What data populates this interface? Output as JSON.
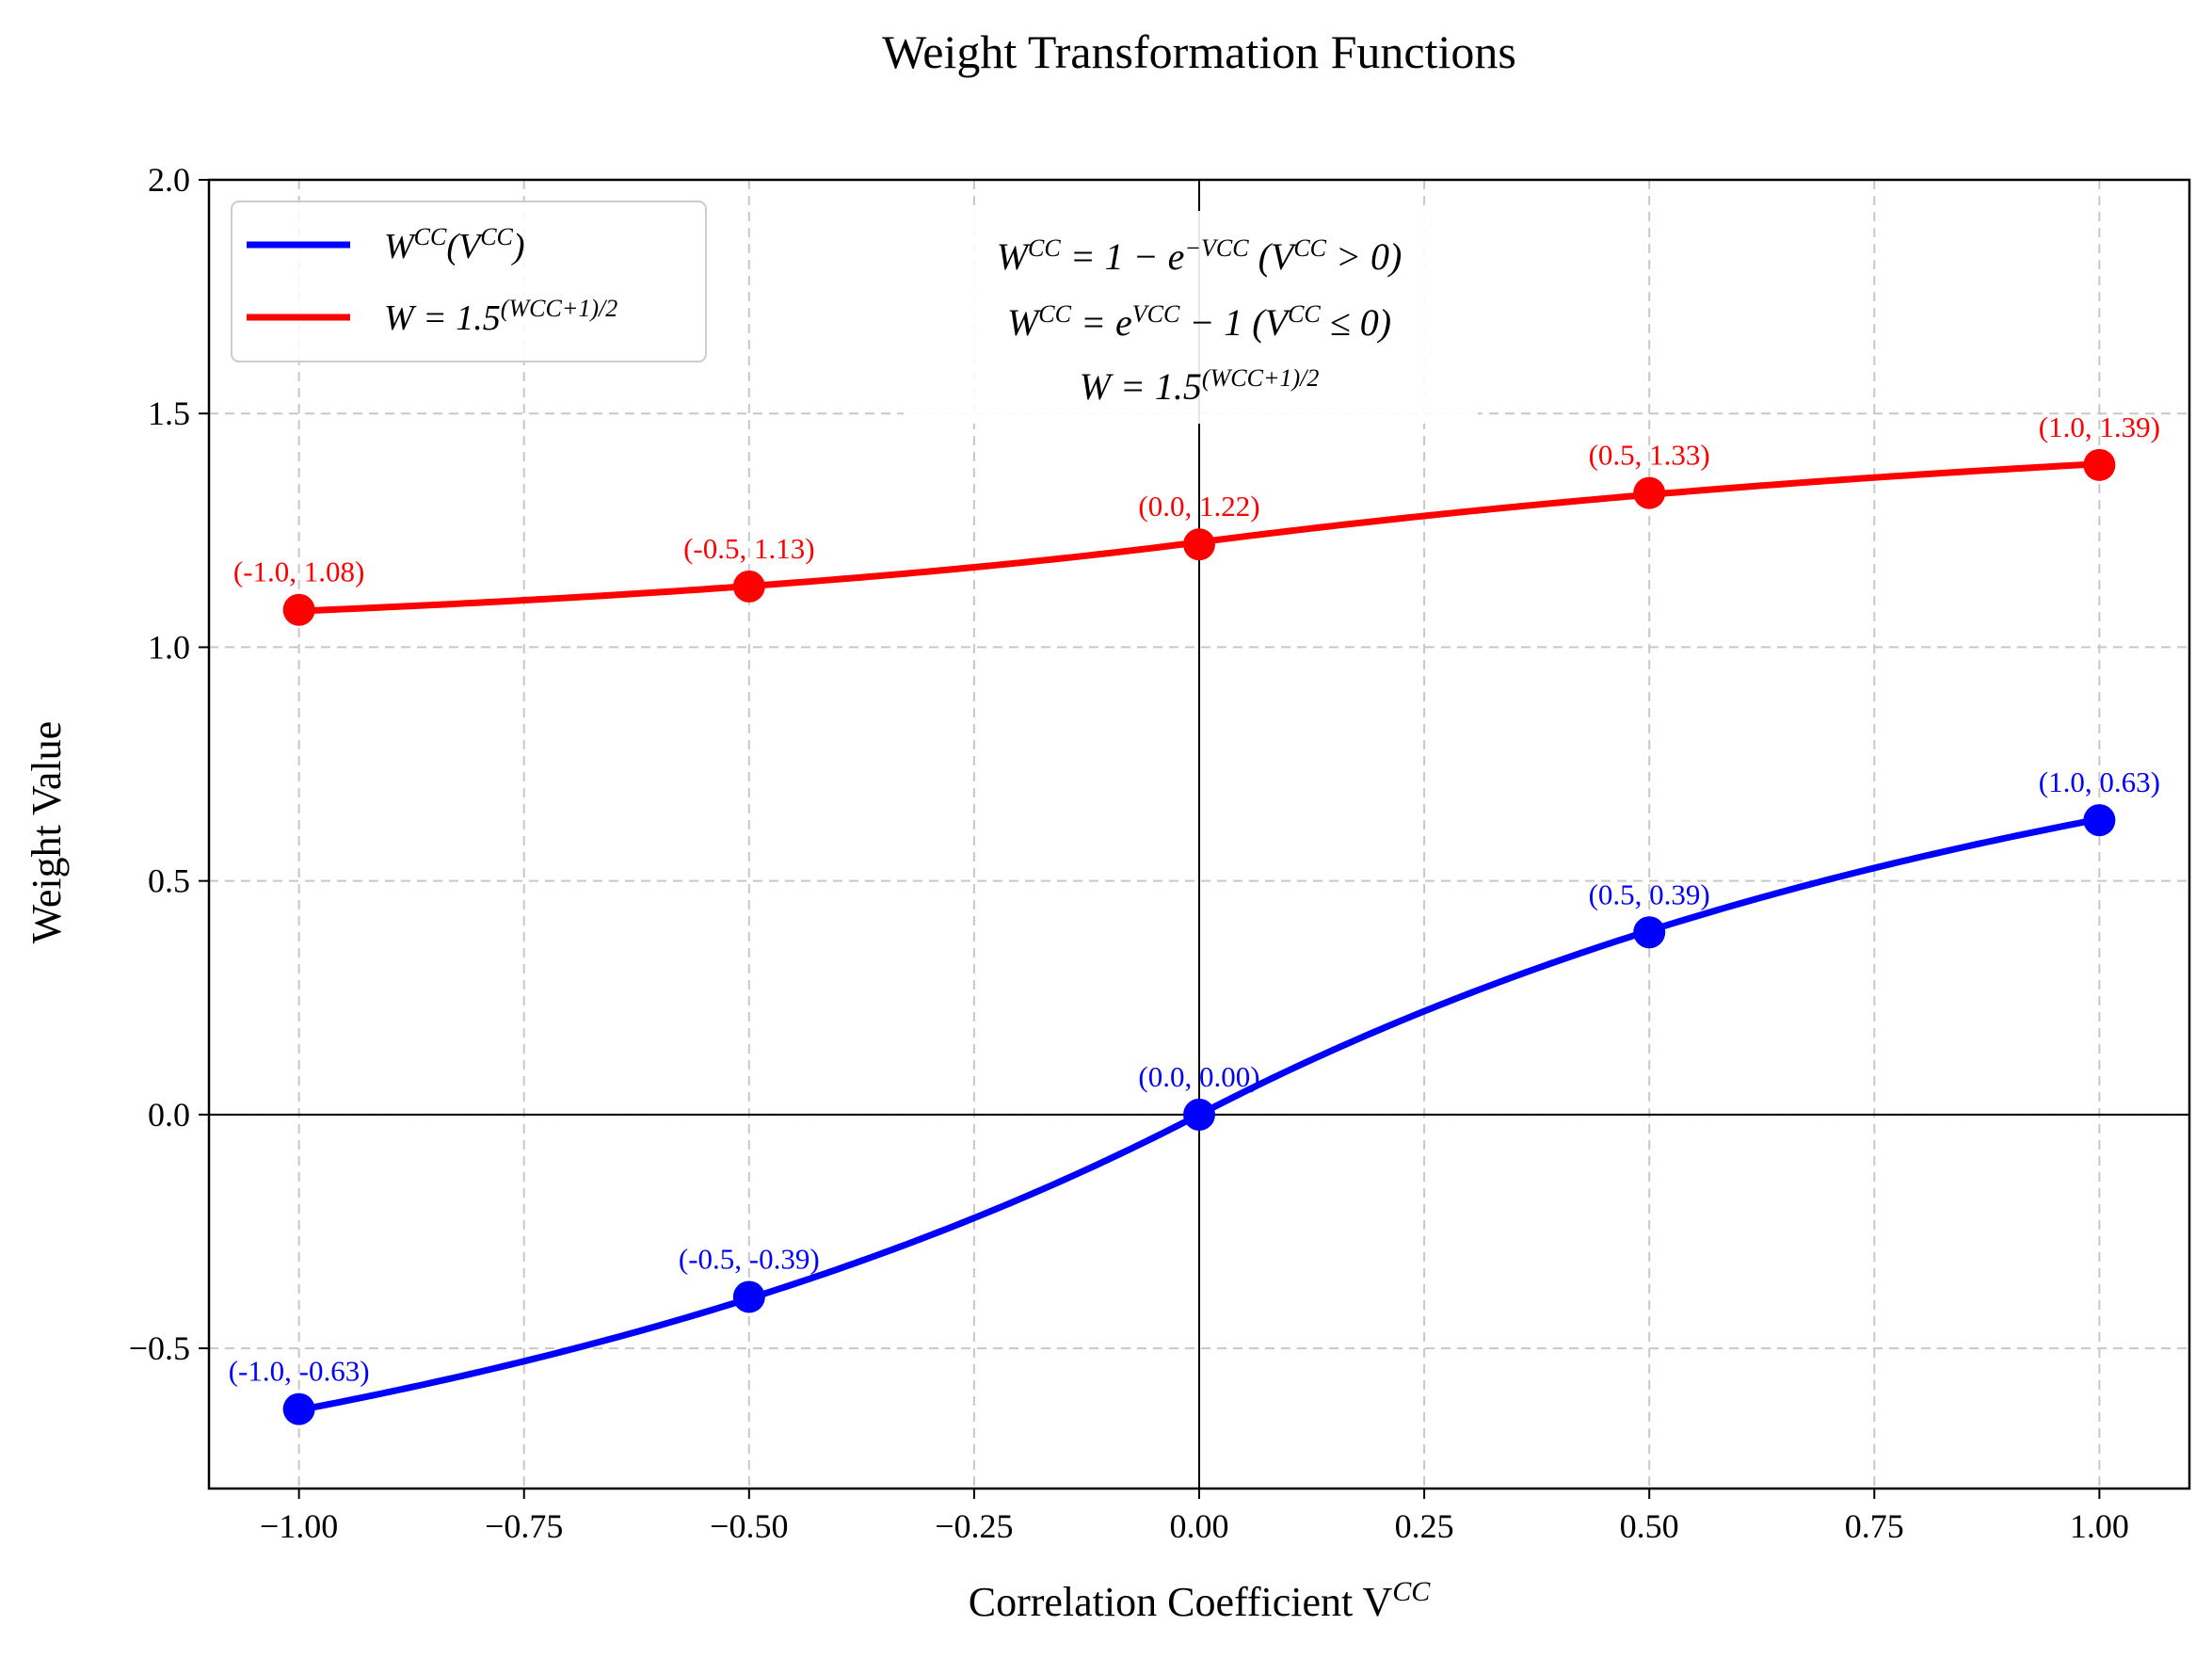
{
  "chart_data": {
    "type": "line",
    "title": "Weight Transformation Functions",
    "xlabel": "Correlation Coefficient V",
    "xlabel_sup": "CC",
    "ylabel": "Weight Value",
    "xlim": [
      -1.1,
      1.1
    ],
    "ylim": [
      -0.8,
      2.0
    ],
    "x_ticks": [
      -1.0,
      -0.75,
      -0.5,
      -0.25,
      0.0,
      0.25,
      0.5,
      0.75,
      1.0
    ],
    "x_tick_labels": [
      "−1.00",
      "−0.75",
      "−0.50",
      "−0.25",
      "0.00",
      "0.25",
      "0.50",
      "0.75",
      "1.00"
    ],
    "y_ticks": [
      -0.5,
      0.0,
      0.5,
      1.0,
      1.5,
      2.0
    ],
    "y_tick_labels": [
      "−0.5",
      "0.0",
      "0.5",
      "1.0",
      "1.5",
      "2.0"
    ],
    "grid": true,
    "legend_position": "top-left",
    "series": [
      {
        "name": "W^CC(V^CC)",
        "legend_parts": [
          "W",
          "CC",
          "(V",
          "CC",
          ")"
        ],
        "color": "#0000ff",
        "function": "wcc",
        "points": [
          {
            "x": -1.0,
            "y": -0.63,
            "label": "(-1.0, -0.63)"
          },
          {
            "x": -0.5,
            "y": -0.39,
            "label": "(-0.5, -0.39)"
          },
          {
            "x": 0.0,
            "y": 0.0,
            "label": "(0.0, 0.00)"
          },
          {
            "x": 0.5,
            "y": 0.39,
            "label": "(0.5, 0.39)"
          },
          {
            "x": 1.0,
            "y": 0.63,
            "label": "(1.0, 0.63)"
          }
        ]
      },
      {
        "name": "W = 1.5^((W^CC+1)/2)",
        "legend_parts": [
          "W = 1.5",
          "(W",
          "CC",
          "+1)/2"
        ],
        "color": "#ff0000",
        "function": "w",
        "points": [
          {
            "x": -1.0,
            "y": 1.08,
            "label": "(-1.0, 1.08)"
          },
          {
            "x": -0.5,
            "y": 1.13,
            "label": "(-0.5, 1.13)"
          },
          {
            "x": 0.0,
            "y": 1.22,
            "label": "(0.0, 1.22)"
          },
          {
            "x": 0.5,
            "y": 1.33,
            "label": "(0.5, 1.33)"
          },
          {
            "x": 1.0,
            "y": 1.39,
            "label": "(1.0, 1.39)"
          }
        ]
      }
    ],
    "annotations": [
      {
        "parts": [
          "W",
          "CC",
          " = 1 − e",
          "−V",
          "CC",
          "   (V",
          "CC",
          " > 0)"
        ]
      },
      {
        "parts": [
          "W",
          "CC",
          " = e",
          "V",
          "CC",
          " − 1   (V",
          "CC",
          " ≤ 0)"
        ]
      },
      {
        "parts": [
          "W = 1.5",
          "(W",
          "CC",
          "+1)/2"
        ]
      }
    ]
  }
}
